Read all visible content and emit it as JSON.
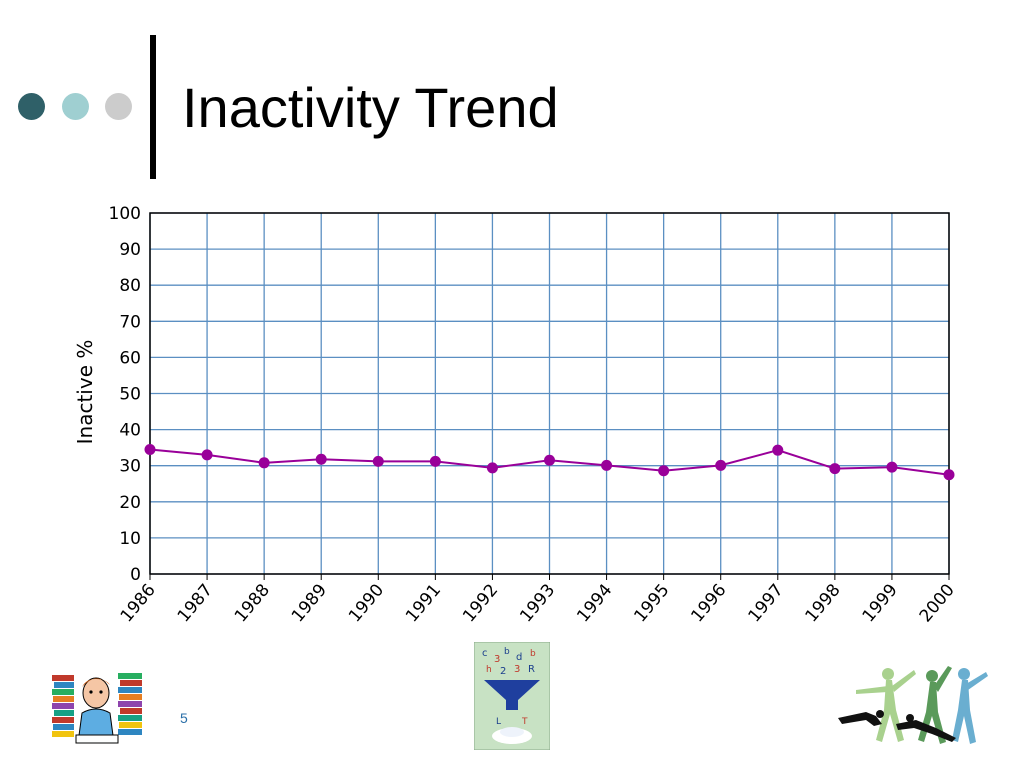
{
  "slide": {
    "title": "Inactivity Trend",
    "slide_number": "5",
    "bullet_dot_colors": [
      "#2f6068",
      "#9fcfd1",
      "#cccccc"
    ]
  },
  "clipart": {
    "left": "student-with-books-image",
    "center": "letters-funnel-image",
    "right": "dancers-silhouette-image"
  },
  "chart_data": {
    "type": "line",
    "title": "",
    "xlabel": "",
    "ylabel": "Inactive %",
    "x": [
      "1986",
      "1987",
      "1988",
      "1989",
      "1990",
      "1991",
      "1992",
      "1993",
      "1994",
      "1995",
      "1996",
      "1997",
      "1998",
      "1999",
      "2000"
    ],
    "series": [
      {
        "values": [
          34.5,
          33,
          30.8,
          31.8,
          31.2,
          31.2,
          29.4,
          31.5,
          30.1,
          28.6,
          30.1,
          34.3,
          29.2,
          29.6,
          27.5
        ],
        "color": "#990099"
      }
    ],
    "ylim": [
      0,
      100
    ],
    "yticks": [
      0,
      10,
      20,
      30,
      40,
      50,
      60,
      70,
      80,
      90,
      100
    ],
    "grid": true,
    "grid_color": "#5b8fc2"
  }
}
